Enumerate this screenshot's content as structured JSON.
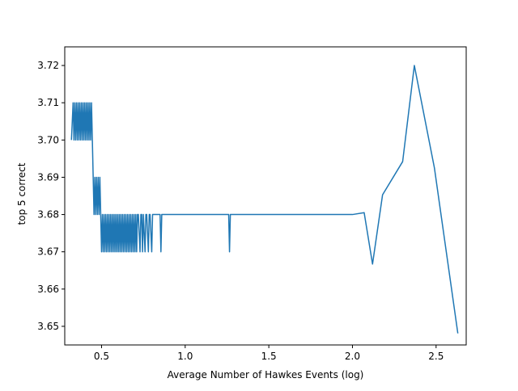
{
  "colors": {
    "line": "#1f77b4",
    "axes": "#000000",
    "background": "#ffffff"
  },
  "chart_data": {
    "type": "line",
    "title": "",
    "xlabel": "Average Number of Hawkes Events (log)",
    "ylabel": "top 5 correct",
    "xlim": [
      0.28,
      2.68
    ],
    "ylim": [
      3.645,
      3.725
    ],
    "xticks": [
      0.5,
      1.0,
      1.5,
      2.0,
      2.5
    ],
    "xtick_labels": [
      "0.5",
      "1.0",
      "1.5",
      "2.0",
      "2.5"
    ],
    "yticks": [
      3.65,
      3.66,
      3.67,
      3.68,
      3.69,
      3.7,
      3.71,
      3.72
    ],
    "ytick_labels": [
      "3.65",
      "3.66",
      "3.67",
      "3.68",
      "3.69",
      "3.70",
      "3.71",
      "3.72"
    ],
    "grid": false,
    "series": [
      {
        "x": [
          0.32,
          0.33,
          0.335,
          0.34,
          0.345,
          0.35,
          0.355,
          0.36,
          0.365,
          0.37,
          0.375,
          0.38,
          0.385,
          0.39,
          0.395,
          0.4,
          0.405,
          0.41,
          0.415,
          0.42,
          0.425,
          0.43,
          0.435,
          0.44,
          0.445,
          0.45,
          0.455,
          0.46,
          0.465,
          0.47,
          0.475,
          0.48,
          0.485,
          0.49,
          0.495,
          0.5,
          0.505,
          0.51,
          0.515,
          0.52,
          0.525,
          0.53,
          0.535,
          0.54,
          0.545,
          0.55,
          0.555,
          0.56,
          0.565,
          0.57,
          0.575,
          0.58,
          0.585,
          0.59,
          0.595,
          0.6,
          0.605,
          0.61,
          0.615,
          0.62,
          0.625,
          0.63,
          0.635,
          0.64,
          0.645,
          0.65,
          0.655,
          0.66,
          0.665,
          0.67,
          0.675,
          0.68,
          0.685,
          0.69,
          0.695,
          0.7,
          0.705,
          0.71,
          0.715,
          0.72,
          0.73,
          0.735,
          0.74,
          0.745,
          0.75,
          0.76,
          0.765,
          0.77,
          0.78,
          0.785,
          0.79,
          0.8,
          0.805,
          0.85,
          0.855,
          0.86,
          1.26,
          1.265,
          1.27,
          2.0,
          2.07,
          2.12,
          2.18,
          2.3,
          2.37,
          2.49,
          2.63
        ],
        "y": [
          3.7,
          3.71,
          3.7,
          3.71,
          3.7,
          3.71,
          3.7,
          3.71,
          3.7,
          3.71,
          3.7,
          3.71,
          3.7,
          3.71,
          3.7,
          3.71,
          3.7,
          3.71,
          3.7,
          3.71,
          3.7,
          3.71,
          3.7,
          3.71,
          3.7,
          3.69,
          3.68,
          3.69,
          3.68,
          3.69,
          3.68,
          3.69,
          3.68,
          3.69,
          3.68,
          3.67,
          3.68,
          3.67,
          3.68,
          3.67,
          3.68,
          3.67,
          3.68,
          3.67,
          3.68,
          3.67,
          3.68,
          3.67,
          3.68,
          3.67,
          3.68,
          3.67,
          3.68,
          3.67,
          3.68,
          3.67,
          3.68,
          3.67,
          3.68,
          3.67,
          3.68,
          3.67,
          3.68,
          3.67,
          3.68,
          3.67,
          3.68,
          3.67,
          3.68,
          3.67,
          3.68,
          3.67,
          3.68,
          3.67,
          3.68,
          3.67,
          3.68,
          3.67,
          3.68,
          3.68,
          3.67,
          3.68,
          3.68,
          3.67,
          3.68,
          3.67,
          3.68,
          3.68,
          3.67,
          3.68,
          3.68,
          3.67,
          3.68,
          3.68,
          3.67,
          3.68,
          3.68,
          3.67,
          3.68,
          3.68,
          3.6805,
          3.6667,
          3.6853,
          3.6942,
          3.72,
          3.6925,
          3.6481
        ]
      }
    ]
  }
}
